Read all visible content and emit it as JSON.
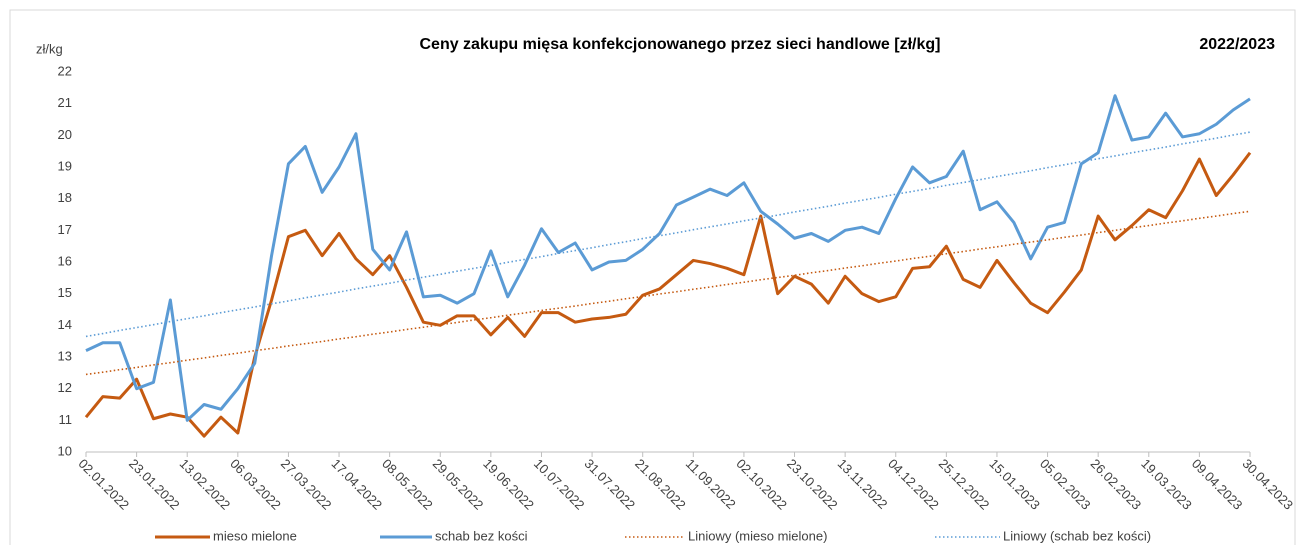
{
  "chart_data": {
    "type": "line",
    "title": "Ceny zakupu mięsa konfekcjonowanego przez sieci handlowe [zł/kg]",
    "subtitle": "2022/2023",
    "y_label": "zł/kg",
    "categories": [
      "02.01.2022",
      null,
      null,
      "23.01.2022",
      null,
      null,
      "13.02.2022",
      null,
      null,
      "06.03.2022",
      null,
      null,
      "27.03.2022",
      null,
      null,
      "17.04.2022",
      null,
      null,
      "08.05.2022",
      null,
      null,
      "29.05.2022",
      null,
      null,
      "19.06.2022",
      null,
      null,
      "10.07.2022",
      null,
      null,
      "31.07.2022",
      null,
      null,
      "21.08.2022",
      null,
      null,
      "11.09.2022",
      null,
      null,
      "02.10.2022",
      null,
      null,
      "23.10.2022",
      null,
      null,
      "13.11.2022",
      null,
      null,
      "04.12.2022",
      null,
      null,
      "25.12.2022",
      null,
      null,
      "15.01.2023",
      null,
      null,
      "05.02.2023",
      null,
      null,
      "26.02.2023",
      null,
      null,
      "19.03.2023",
      null,
      null,
      "09.04.2023",
      null,
      null,
      "30.04.2023"
    ],
    "series": [
      {
        "name": "mieso mielone",
        "color": "#c55a11",
        "style": "solid",
        "values": [
          11.1,
          11.75,
          11.7,
          12.3,
          11.05,
          11.2,
          11.1,
          10.5,
          11.1,
          10.6,
          13.0,
          14.8,
          16.8,
          17.0,
          16.2,
          16.9,
          16.1,
          15.6,
          16.2,
          15.2,
          14.1,
          14.0,
          14.3,
          14.3,
          13.7,
          14.25,
          13.65,
          14.4,
          14.4,
          14.1,
          14.2,
          14.25,
          14.35,
          14.95,
          15.15,
          15.6,
          16.05,
          15.95,
          15.8,
          15.6,
          17.45,
          15.0,
          15.55,
          15.3,
          14.7,
          15.55,
          15.0,
          14.75,
          14.9,
          15.8,
          15.85,
          16.5,
          15.45,
          15.2,
          16.05,
          15.35,
          14.7,
          14.4,
          15.05,
          15.75,
          17.45,
          16.7,
          17.15,
          17.65,
          17.4,
          18.25,
          19.25,
          18.1,
          18.75,
          19.45
        ]
      },
      {
        "name": "schab bez kości",
        "color": "#5b9bd5",
        "style": "solid",
        "values": [
          13.2,
          13.45,
          13.45,
          12.0,
          12.2,
          14.8,
          11.0,
          11.5,
          11.35,
          12.0,
          12.8,
          16.2,
          19.1,
          19.65,
          18.2,
          19.0,
          20.05,
          16.4,
          15.75,
          16.95,
          14.9,
          14.95,
          14.7,
          15.0,
          16.35,
          14.9,
          15.9,
          17.05,
          16.3,
          16.6,
          15.75,
          16.0,
          16.05,
          16.4,
          16.9,
          17.8,
          18.05,
          18.3,
          18.1,
          18.5,
          17.6,
          17.2,
          16.75,
          16.9,
          16.65,
          17.0,
          17.1,
          16.9,
          18.0,
          19.0,
          18.5,
          18.7,
          19.5,
          17.65,
          17.9,
          17.25,
          16.1,
          17.1,
          17.25,
          19.1,
          19.45,
          21.25,
          19.85,
          19.95,
          20.7,
          19.95,
          20.05,
          20.35,
          20.8,
          21.15
        ]
      },
      {
        "name": "Liniowy (mieso mielone)",
        "color": "#c55a11",
        "style": "dotted",
        "values": [
          12.45,
          12.52,
          12.6,
          12.67,
          12.75,
          12.82,
          12.9,
          12.97,
          13.05,
          13.12,
          13.2,
          13.27,
          13.35,
          13.42,
          13.49,
          13.57,
          13.64,
          13.72,
          13.79,
          13.87,
          13.94,
          14.02,
          14.09,
          14.17,
          14.24,
          14.32,
          14.39,
          14.47,
          14.54,
          14.61,
          14.69,
          14.76,
          14.84,
          14.91,
          14.99,
          15.06,
          15.14,
          15.21,
          15.29,
          15.36,
          15.44,
          15.51,
          15.58,
          15.66,
          15.73,
          15.81,
          15.88,
          15.96,
          16.03,
          16.11,
          16.18,
          16.26,
          16.33,
          16.41,
          16.48,
          16.56,
          16.63,
          16.7,
          16.78,
          16.85,
          16.93,
          17.0,
          17.08,
          17.15,
          17.23,
          17.3,
          17.38,
          17.45,
          17.53,
          17.6
        ]
      },
      {
        "name": "Liniowy (schab bez kości)",
        "color": "#5b9bd5",
        "style": "dotted",
        "values": [
          13.65,
          13.74,
          13.84,
          13.93,
          14.02,
          14.12,
          14.21,
          14.3,
          14.4,
          14.49,
          14.58,
          14.68,
          14.77,
          14.87,
          14.96,
          15.05,
          15.15,
          15.24,
          15.33,
          15.43,
          15.52,
          15.61,
          15.71,
          15.8,
          15.89,
          15.99,
          16.08,
          16.17,
          16.27,
          16.36,
          16.45,
          16.55,
          16.64,
          16.74,
          16.83,
          16.92,
          17.02,
          17.11,
          17.2,
          17.3,
          17.39,
          17.48,
          17.58,
          17.67,
          17.76,
          17.86,
          17.95,
          18.04,
          18.14,
          18.23,
          18.32,
          18.42,
          18.51,
          18.6,
          18.7,
          18.79,
          18.88,
          18.98,
          19.07,
          19.17,
          19.26,
          19.35,
          19.45,
          19.54,
          19.63,
          19.73,
          19.82,
          19.91,
          20.01,
          20.1
        ]
      }
    ],
    "ylim": [
      10,
      22
    ],
    "yticks": [
      10,
      11,
      12,
      13,
      14,
      15,
      16,
      17,
      18,
      19,
      20,
      21,
      22
    ],
    "grid": false,
    "legend": "bottom"
  }
}
